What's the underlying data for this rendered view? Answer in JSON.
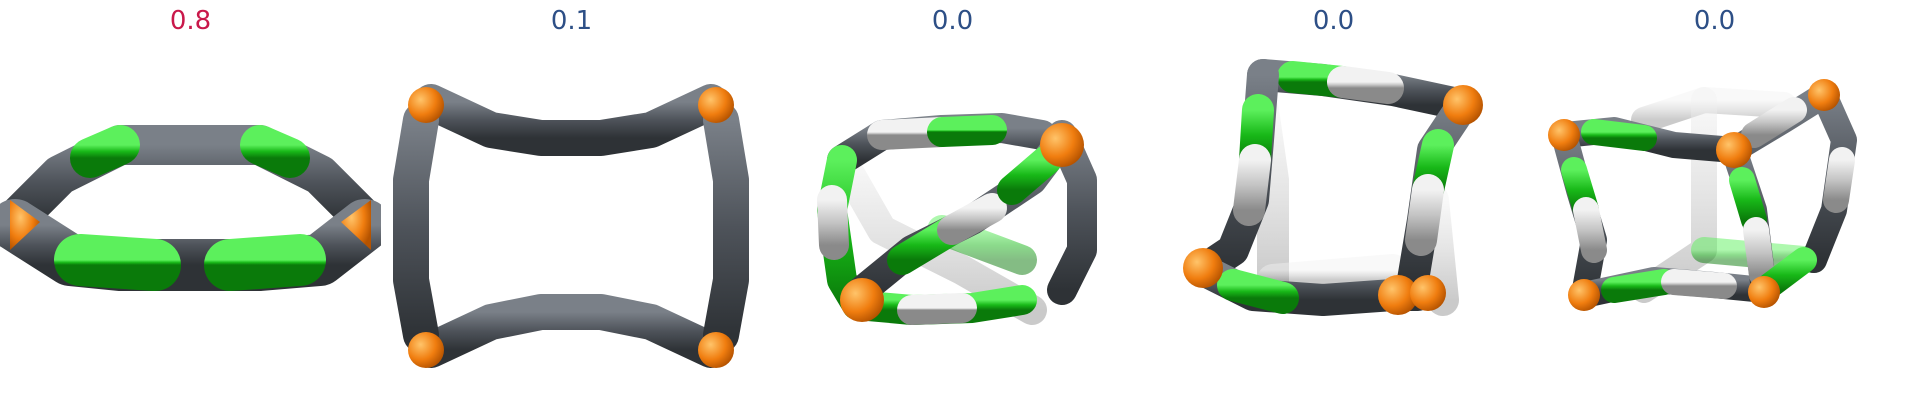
{
  "colors": {
    "highlight_score": "#c9184a",
    "normal_score": "#2d4f86",
    "carbon_dark": "#565b63",
    "carbon_light": "#c9c9c9",
    "green": "#1fbf1f",
    "orange": "#f07d0f"
  },
  "panels": [
    {
      "score": "0.8",
      "highlight": true
    },
    {
      "score": "0.1",
      "highlight": false
    },
    {
      "score": "0.0",
      "highlight": false
    },
    {
      "score": "0.0",
      "highlight": false
    },
    {
      "score": "0.0",
      "highlight": false
    }
  ]
}
